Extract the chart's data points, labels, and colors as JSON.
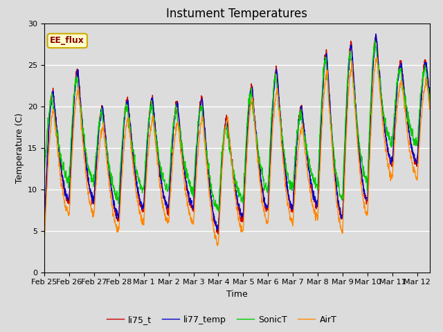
{
  "title": "Instument Temperatures",
  "xlabel": "Time",
  "ylabel": "Temperature (C)",
  "ylim": [
    0,
    30
  ],
  "background_color": "#dcdcdc",
  "plot_bg_color": "#dcdcdc",
  "line_colors": {
    "li75_t": "#cc0000",
    "li77_temp": "#0000cc",
    "SonicT": "#00cc00",
    "AirT": "#ff8800"
  },
  "tick_labels": [
    "Feb 25",
    "Feb 26",
    "Feb 27",
    "Feb 28",
    "Mar 1",
    "Mar 2",
    "Mar 3",
    "Mar 4",
    "Mar 5",
    "Mar 6",
    "Mar 7",
    "Mar 8",
    "Mar 9",
    "Mar 10",
    "Mar 11",
    "Mar 12"
  ],
  "annotation_text": "EE_flux",
  "annotation_bg": "#ffffcc",
  "annotation_border": "#ccaa00",
  "grid_color": "#ffffff",
  "title_fontsize": 12,
  "axis_fontsize": 9,
  "tick_fontsize": 8,
  "legend_fontsize": 9,
  "n_days": 15.5,
  "n_points": 1500,
  "daily_peak_maxima": [
    22.0,
    24.5,
    20.0,
    21.0,
    21.0,
    20.5,
    21.0,
    18.5,
    22.5,
    24.5,
    20.0,
    26.5,
    27.5,
    28.5,
    25.5
  ],
  "daily_minima_base": [
    5.0,
    8.5,
    8.5,
    6.5,
    7.5,
    7.5,
    7.5,
    5.0,
    6.5,
    7.5,
    7.5,
    8.0,
    6.5,
    8.5,
    13.0
  ]
}
